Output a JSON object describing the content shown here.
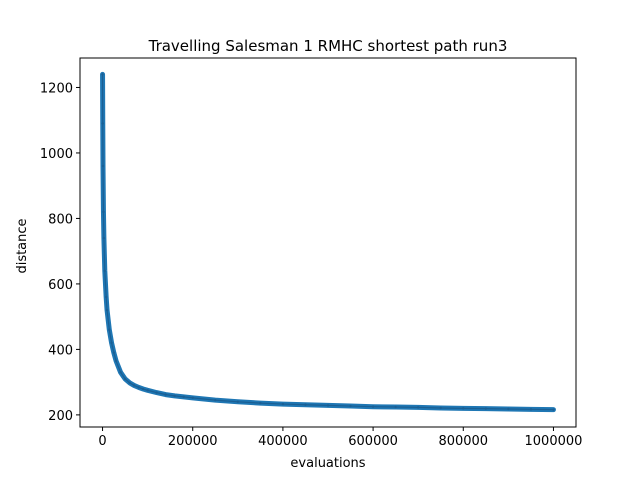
{
  "chart_data": {
    "type": "line",
    "title": "Travelling Salesman 1 RMHC shortest path run3",
    "xlabel": "evaluations",
    "ylabel": "distance",
    "xlim": [
      -50000,
      1050000
    ],
    "ylim": [
      163,
      1290
    ],
    "xticks": [
      0,
      200000,
      400000,
      600000,
      800000,
      1000000
    ],
    "xtick_labels": [
      "0",
      "200000",
      "400000",
      "600000",
      "800000",
      "1000000"
    ],
    "yticks": [
      200,
      400,
      600,
      800,
      1000,
      1200
    ],
    "ytick_labels": [
      "200",
      "400",
      "600",
      "800",
      "1000",
      "1200"
    ],
    "grid": false,
    "line_color": "#1f77b4",
    "series": [
      {
        "x": [
          0,
          500,
          1000,
          2000,
          3000,
          5000,
          8000,
          10000,
          15000,
          20000,
          25000,
          30000,
          40000,
          50000,
          60000,
          70000,
          80000,
          90000,
          100000,
          120000,
          140000,
          160000,
          180000,
          200000,
          250000,
          300000,
          350000,
          400000,
          450000,
          500000,
          550000,
          600000,
          650000,
          700000,
          750000,
          800000,
          850000,
          900000,
          950000,
          1000000
        ],
        "y": [
          1240,
          1090,
          960,
          820,
          740,
          640,
          560,
          520,
          460,
          420,
          390,
          365,
          330,
          310,
          298,
          290,
          284,
          279,
          275,
          268,
          262,
          258,
          255,
          252,
          245,
          240,
          236,
          233,
          231,
          229,
          227,
          225,
          224,
          223,
          221,
          220,
          219,
          218,
          217,
          216
        ]
      }
    ]
  }
}
